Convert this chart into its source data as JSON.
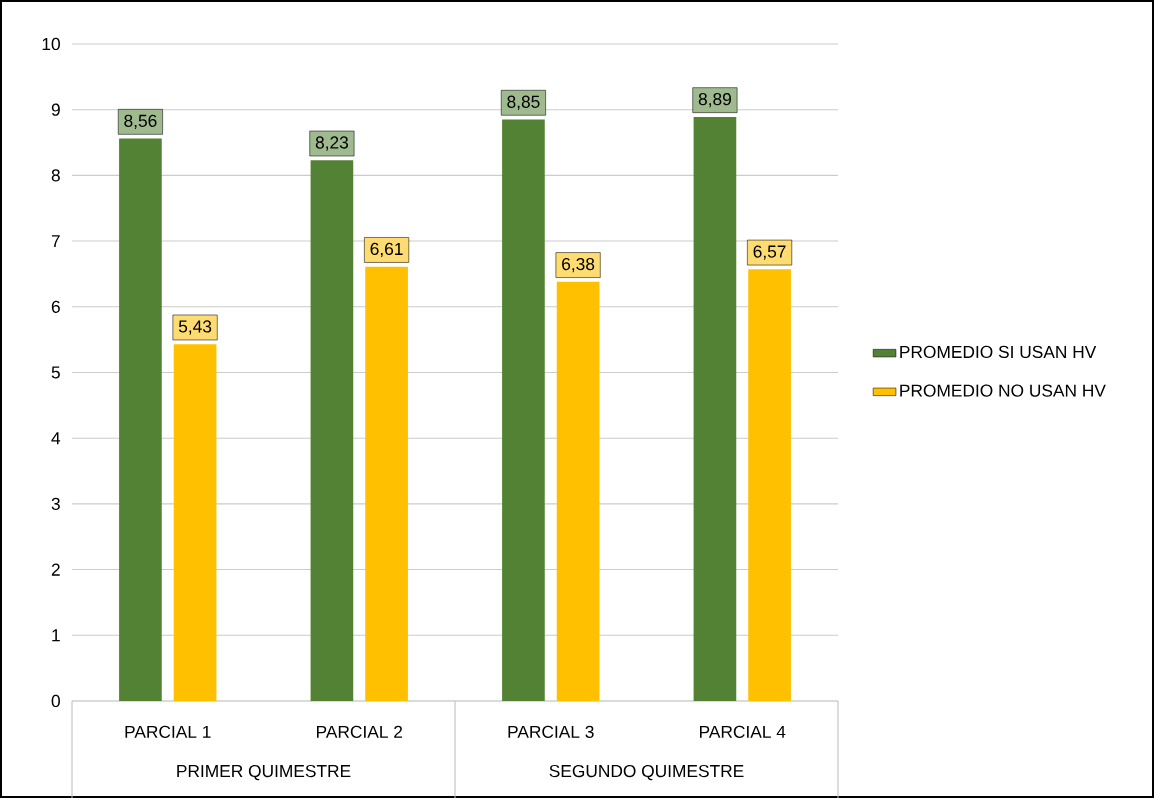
{
  "chart_data": {
    "type": "bar",
    "categories": [
      "PARCIAL 1",
      "PARCIAL 2",
      "PARCIAL 3",
      "PARCIAL 4"
    ],
    "series": [
      {
        "name": "PROMEDIO SI USAN HV",
        "color": "#548235",
        "values": [
          8.56,
          8.23,
          8.85,
          8.89
        ],
        "value_labels": [
          "8,56",
          "8,23",
          "8,85",
          "8,89"
        ]
      },
      {
        "name": "PROMEDIO NO USAN HV",
        "color": "#ffc000",
        "values": [
          5.43,
          6.61,
          6.38,
          6.57
        ],
        "value_labels": [
          "5,43",
          "6,61",
          "6,38",
          "6,57"
        ]
      }
    ],
    "annotations": [
      "PRIMER QUIMESTRE",
      "SEGUNDO QUIMESTRE"
    ],
    "ylim": [
      0,
      10
    ],
    "yticks": [
      0,
      1,
      2,
      3,
      4,
      5,
      6,
      7,
      8,
      9,
      10
    ],
    "grid": "y",
    "legend": "right"
  }
}
